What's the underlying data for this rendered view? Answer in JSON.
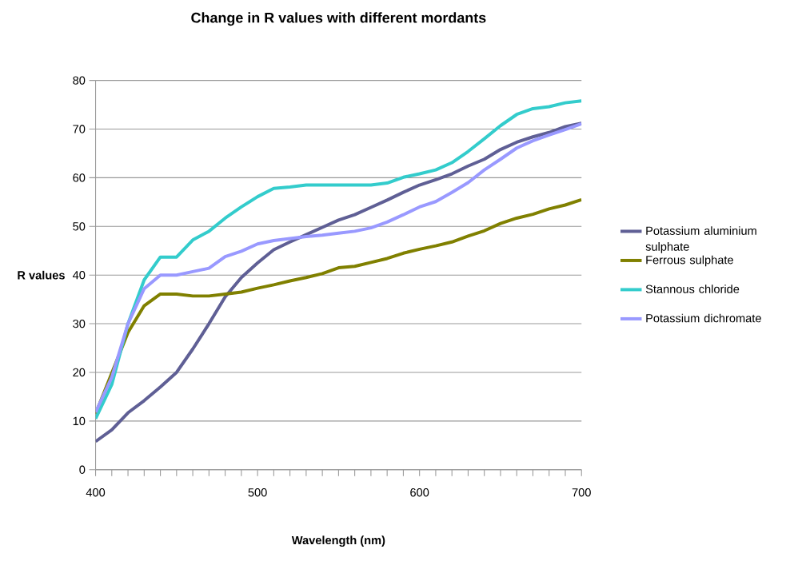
{
  "chart_data": {
    "type": "line",
    "title": "Change in R values with different mordants",
    "xlabel": "Wavelength (nm)",
    "ylabel": "R values",
    "x": [
      400,
      410,
      420,
      430,
      440,
      450,
      460,
      470,
      480,
      490,
      500,
      510,
      520,
      530,
      540,
      550,
      560,
      570,
      580,
      590,
      600,
      610,
      620,
      630,
      640,
      650,
      660,
      670,
      680,
      690,
      700
    ],
    "series": [
      {
        "name": "Potassium aluminium sulphate",
        "color": "#5f5f95",
        "values": [
          5.8,
          8.2,
          11.7,
          14.2,
          17,
          20,
          24.8,
          30,
          35.5,
          39.5,
          42.5,
          45.2,
          46.8,
          48.3,
          49.8,
          51.3,
          52.4,
          53.9,
          55.4,
          57,
          58.5,
          59.6,
          60.8,
          62.4,
          63.8,
          65.8,
          67.3,
          68.4,
          69.3,
          70.5,
          71.2
        ]
      },
      {
        "name": "Ferrous sulphate",
        "color": "#808000",
        "values": [
          11.5,
          null,
          28.2,
          33.7,
          36.1,
          36.1,
          35.7,
          35.7,
          36.1,
          36.5,
          37.3,
          38,
          38.8,
          39.5,
          40.3,
          41.5,
          41.8,
          42.6,
          43.4,
          44.5,
          45.3,
          46,
          46.8,
          48,
          49.1,
          50.6,
          51.7,
          52.5,
          53.6,
          54.4,
          55.5
        ]
      },
      {
        "name": "Stannous chloride",
        "color": "#33cccc",
        "values": [
          10.5,
          17.5,
          30,
          39,
          43.7,
          43.7,
          47.2,
          49,
          51.7,
          54,
          56.1,
          57.8,
          58.1,
          58.5,
          58.5,
          58.5,
          58.5,
          58.5,
          58.9,
          60.1,
          60.8,
          61.6,
          63.1,
          65.4,
          68,
          70.7,
          73,
          74.2,
          74.6,
          75.4,
          75.8
        ]
      },
      {
        "name": "Potassium dichromate",
        "color": "#9999ff",
        "values": [
          11.8,
          19,
          30,
          37.2,
          40,
          40,
          40.7,
          41.4,
          43.8,
          44.9,
          46.4,
          47.1,
          47.5,
          47.9,
          48.2,
          48.6,
          49,
          49.7,
          50.9,
          52.4,
          54,
          55.1,
          57,
          59,
          61.6,
          63.8,
          66.1,
          67.6,
          68.8,
          69.9,
          71.1
        ]
      }
    ],
    "xlim": [
      400,
      700
    ],
    "xticks": [
      400,
      {
        "value": 410,
        "label": null
      },
      {
        "value": 420,
        "label": null
      },
      {
        "value": 430,
        "label": null
      },
      {
        "value": 440,
        "label": null
      },
      {
        "value": 450,
        "label": null
      },
      {
        "value": 460,
        "label": null
      },
      {
        "value": 470,
        "label": null
      },
      {
        "value": 480,
        "label": null
      },
      {
        "value": 490,
        "label": null
      },
      500,
      {
        "value": 510,
        "label": null
      },
      {
        "value": 520,
        "label": null
      },
      {
        "value": 530,
        "label": null
      },
      {
        "value": 540,
        "label": null
      },
      {
        "value": 550,
        "label": null
      },
      {
        "value": 560,
        "label": null
      },
      {
        "value": 570,
        "label": null
      },
      {
        "value": 580,
        "label": null
      },
      {
        "value": 590,
        "label": null
      },
      600,
      {
        "value": 610,
        "label": null
      },
      {
        "value": 620,
        "label": null
      },
      {
        "value": 630,
        "label": null
      },
      {
        "value": 640,
        "label": null
      },
      {
        "value": 650,
        "label": null
      },
      {
        "value": 660,
        "label": null
      },
      {
        "value": 670,
        "label": null
      },
      {
        "value": 680,
        "label": null
      },
      {
        "value": 690,
        "label": null
      },
      700
    ],
    "ylim": [
      0,
      80
    ],
    "yticks": [
      0,
      10,
      20,
      30,
      40,
      50,
      60,
      70,
      80
    ],
    "grid": "y",
    "legend": "right",
    "marker": "none",
    "line_style": "solid"
  }
}
